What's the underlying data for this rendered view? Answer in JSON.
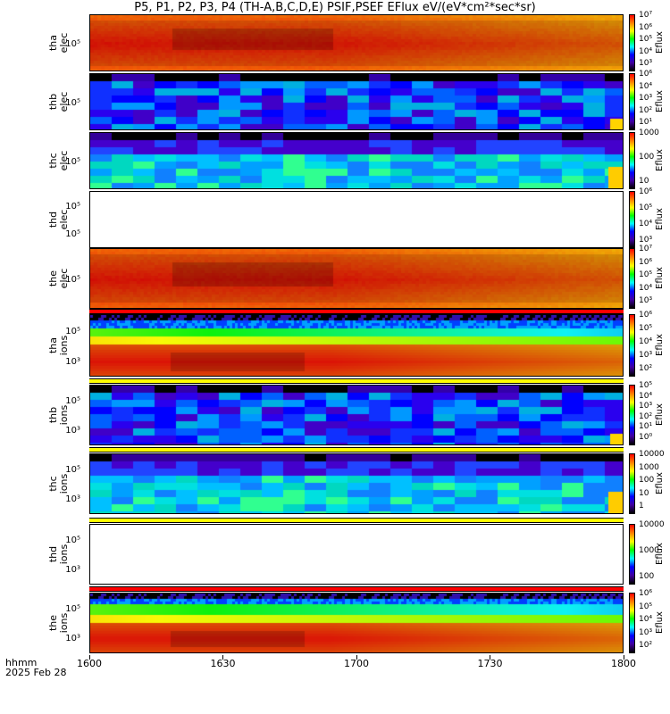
{
  "title": "P5, P1, P2, P3, P4 (TH-A,B,C,D,E) PSIF,PSEF EFlux eV/(eV*cm²*sec*sr)",
  "corner": {
    "line1": "hhmm",
    "line2": "2025 Feb 28"
  },
  "x_ticks": [
    "1600",
    "1630",
    "1700",
    "1730",
    "1800"
  ],
  "chart_data": {
    "type": "heatmap",
    "title": "P5, P1, P2, P3, P4 (TH-A,B,C,D,E) PSIF,PSEF EFlux eV/(eV*cm²*sec*sr)",
    "x_range": [
      "1600",
      "1800"
    ],
    "x_date": "2025 Feb 28",
    "x_units_label": "hhmm",
    "colorbar_label": "Eflux",
    "panels": [
      {
        "name": "tha elec",
        "y_ticks": [
          "10⁵"
        ],
        "colorbar_ticks": [
          "10⁷",
          "10⁶",
          "10⁵",
          "10⁴",
          "10³"
        ],
        "filled": true,
        "pattern": "red"
      },
      {
        "name": "thb elec",
        "y_ticks": [
          "10⁵"
        ],
        "colorbar_ticks": [
          "10⁶",
          "10⁴",
          "10³",
          "10²",
          "10¹"
        ],
        "filled": true,
        "pattern": "blue"
      },
      {
        "name": "thc elec",
        "y_ticks": [
          "10⁵"
        ],
        "colorbar_ticks": [
          "1000",
          "100",
          "10"
        ],
        "filled": true,
        "pattern": "cyan"
      },
      {
        "name": "thd elec",
        "y_ticks": [
          "10⁵",
          "10⁵"
        ],
        "colorbar_ticks": [
          "10⁶",
          "10⁵",
          "10⁴",
          "10³"
        ],
        "filled": false,
        "pattern": "empty"
      },
      {
        "name": "the elec",
        "y_ticks": [
          "10⁵"
        ],
        "colorbar_ticks": [
          "10⁷",
          "10⁶",
          "10⁵",
          "10⁴",
          "10³"
        ],
        "filled": true,
        "pattern": "red"
      },
      {
        "name": "tha ions",
        "y_ticks": [
          "10⁵",
          "10³"
        ],
        "colorbar_ticks": [
          "10⁶",
          "10⁵",
          "10⁴",
          "10³",
          "10²"
        ],
        "filled": true,
        "pattern": "ions"
      },
      {
        "name": "thb ions",
        "y_ticks": [
          "10⁵",
          "10³"
        ],
        "colorbar_ticks": [
          "10⁵",
          "10⁴",
          "10³",
          "10²",
          "10¹",
          "10⁰"
        ],
        "filled": true,
        "pattern": "blue"
      },
      {
        "name": "thc ions",
        "y_ticks": [
          "10⁵",
          "10³"
        ],
        "colorbar_ticks": [
          "10000",
          "1000",
          "100",
          "10",
          "1"
        ],
        "filled": true,
        "pattern": "cyan"
      },
      {
        "name": "thd ions",
        "y_ticks": [
          "10⁵",
          "10³"
        ],
        "colorbar_ticks": [
          "10000",
          "1000",
          "100"
        ],
        "filled": false,
        "pattern": "empty"
      },
      {
        "name": "the ions",
        "y_ticks": [
          "10⁵",
          "10³"
        ],
        "colorbar_ticks": [
          "10⁶",
          "10⁵",
          "10⁴",
          "10³",
          "10²"
        ],
        "filled": true,
        "pattern": "ions"
      }
    ]
  }
}
